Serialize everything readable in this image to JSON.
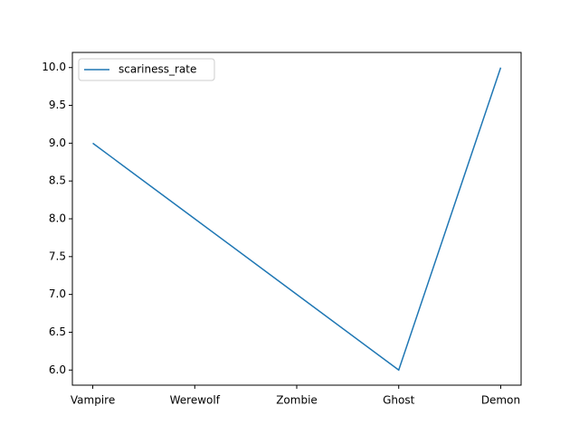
{
  "chart_data": {
    "type": "line",
    "categories": [
      "Vampire",
      "Werewolf",
      "Zombie",
      "Ghost",
      "Demon"
    ],
    "series": [
      {
        "name": "scariness_rate",
        "color": "#1f77b4",
        "values": [
          9,
          8,
          7,
          6,
          10
        ]
      }
    ],
    "ylim": [
      5.8,
      10.2
    ],
    "yticks": [
      {
        "value": 6,
        "label": "6.0"
      },
      {
        "value": 6.5,
        "label": "6.5"
      },
      {
        "value": 7,
        "label": "7.0"
      },
      {
        "value": 7.5,
        "label": "7.5"
      },
      {
        "value": 8,
        "label": "8.0"
      },
      {
        "value": 8.5,
        "label": "8.5"
      },
      {
        "value": 9,
        "label": "9.0"
      },
      {
        "value": 9.5,
        "label": "9.5"
      },
      {
        "value": 10,
        "label": "10.0"
      }
    ],
    "legend": "upper left",
    "grid": false
  }
}
